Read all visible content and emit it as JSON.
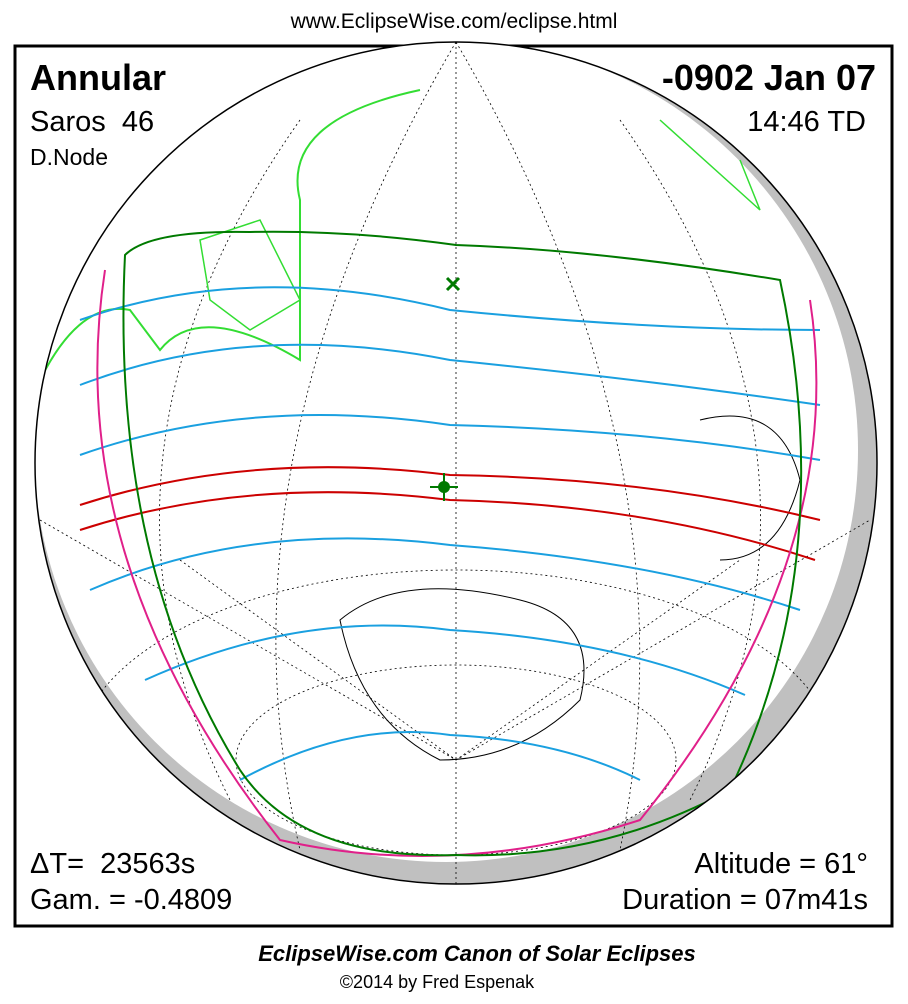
{
  "header": {
    "url": "www.EclipseWise.com/eclipse.html"
  },
  "panel": {
    "eclipse_type": "Annular",
    "date": "-0902 Jan 07",
    "saros": "Saros  46",
    "time": "14:46 TD",
    "node": "D.Node",
    "delta_t": "ΔT=  23563s",
    "altitude": "Altitude = 61°",
    "gamma": "Gam. = -0.4809",
    "duration": "Duration = 07m41s"
  },
  "footer": {
    "title": "EclipseWise.com Canon of Solar Eclipses",
    "copyright": "©2014 by Fred Espenak"
  }
}
